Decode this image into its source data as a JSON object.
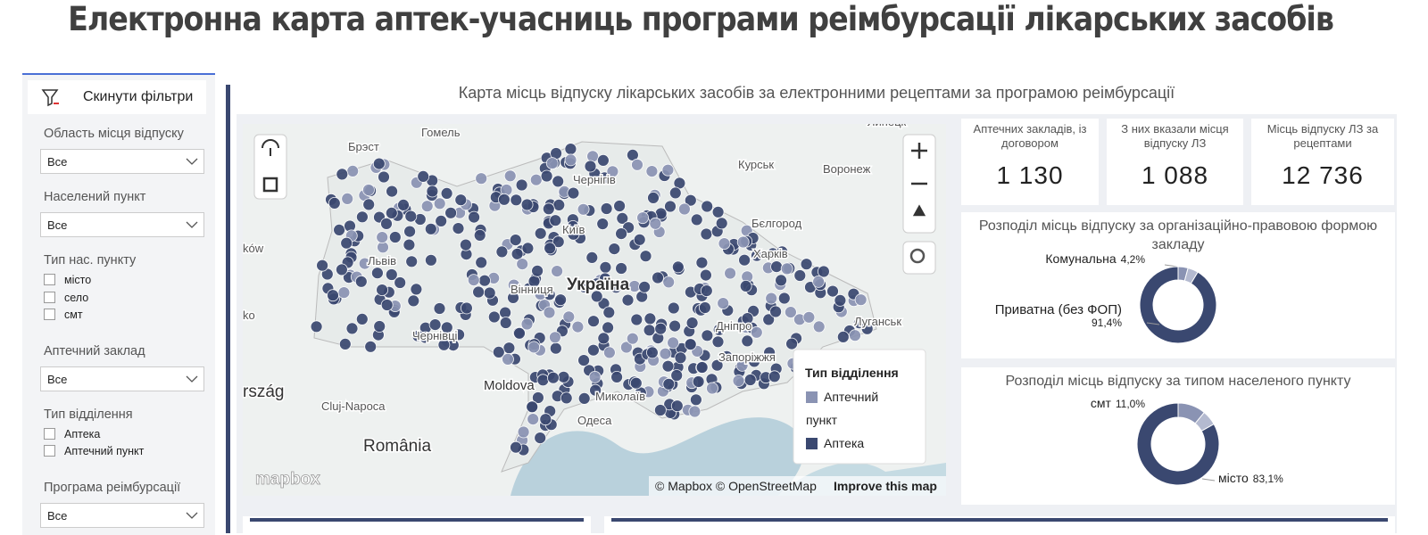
{
  "title": "Електронна карта аптек-учасниць програми реімбурсації лікарських засобів",
  "filters": {
    "reset": "Скинути фільтри",
    "fields": [
      {
        "label": "Область місця відпуску",
        "select": "Все"
      },
      {
        "label": "Населений пункт",
        "select": "Все"
      },
      {
        "label": "Тип нас. пункту",
        "options": [
          "місто",
          "село",
          "смт"
        ]
      },
      {
        "label": "Аптечний заклад",
        "select": "Все"
      },
      {
        "label": "Тип відділення",
        "options": [
          "Аптека",
          "Аптечний пункт"
        ]
      },
      {
        "label": "Програма реімбурсації",
        "select": "Все"
      }
    ]
  },
  "map": {
    "title": "Карта місць відпуску лікарських засобів за електронними рецептами за програмою реімбурсації",
    "labels": [
      "Гомель",
      "Брэст",
      "Чернігів",
      "Курськ",
      "Воронеж",
      "Липецк",
      "Київ",
      "Бєлгород",
      "Харків",
      "Україна",
      "Вінниця",
      "Львів",
      "Луганськ",
      "Дніпро",
      "Запоріжжя",
      "Чернівці",
      "Moldova",
      "Cluj-Napoca",
      "Миколаїв",
      "Одеса",
      "România",
      "rszág",
      "ków",
      "ko"
    ],
    "legend": {
      "title": "Тип відділення",
      "items": [
        "Аптечний пункт",
        "Аптека"
      ]
    },
    "logo": "mapbox",
    "attribution": "© Mapbox © OpenStreetMap",
    "improve": "Improve this map"
  },
  "kpis": [
    {
      "label": "Аптечних закладів, із договором",
      "value": "1 130"
    },
    {
      "label": "З них вказали місця відпуску ЛЗ",
      "value": "1 088"
    },
    {
      "label": "Місць відпуску ЛЗ за рецептами",
      "value": "12 736"
    }
  ],
  "chart_data": [
    {
      "type": "donut",
      "title": "Розподіл місць відпуску за організаційно-правовою формою закладу",
      "categories": [
        "Комунальна",
        null,
        "Приватна (без ФОП)"
      ],
      "values": [
        4.2,
        4.4,
        91.4
      ],
      "value_labels": [
        "4,2%",
        null,
        "91,4%"
      ],
      "colors": [
        "#8a93b3",
        "#b4bad0",
        "#3a4870"
      ]
    },
    {
      "type": "donut",
      "title": "Розподіл місць відпуску за типом населеного пункту",
      "categories": [
        "смт",
        null,
        "місто"
      ],
      "values": [
        11.0,
        5.9,
        83.1
      ],
      "value_labels": [
        "11,0%",
        null,
        "83,1%"
      ],
      "colors": [
        "#8a93b3",
        "#b4bad0",
        "#3a4870"
      ]
    }
  ]
}
